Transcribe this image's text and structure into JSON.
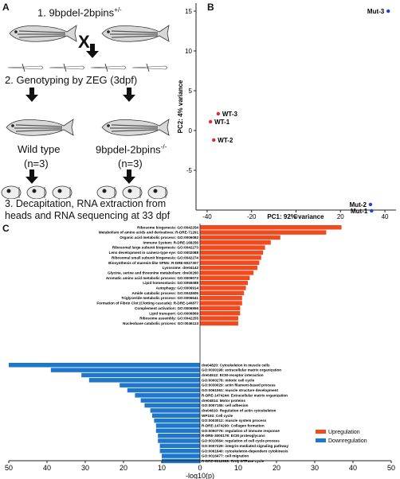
{
  "panelA": {
    "letter": "A",
    "step1": "1. 9bpdel-2bpins",
    "step1_sup": "+/-",
    "cross": "X",
    "step2": "2. Genotyping by ZEG (3dpf)",
    "wt_label": "Wild type",
    "wt_n": "(n=3)",
    "mut_label": "9bpdel-2bpins",
    "mut_sup": "-/-",
    "mut_n": "(n=3)",
    "step3_line1": "3. Decapitation, RNA extraction from",
    "step3_line2": "heads and RNA sequencing at 33 dpf"
  },
  "panelB": {
    "letter": "B",
    "xlabel": "PC1: 92% variance",
    "ylabel": "PC2: 4% variance",
    "colors": {
      "wt": "#e8242b",
      "mut": "#1f3fd6"
    },
    "chart_data": {
      "type": "scatter",
      "xlim": [
        -45,
        45
      ],
      "ylim": [
        -10,
        16
      ],
      "xticks": [
        "-40",
        "-20",
        "0",
        "20",
        "40"
      ],
      "yticks": [
        "15",
        "10",
        "5",
        "0",
        "-5"
      ],
      "points": [
        {
          "label": "Mut-3",
          "x": 41.5,
          "y": 15,
          "group": "mut"
        },
        {
          "label": "WT-3",
          "x": -35,
          "y": 2.1,
          "group": "wt"
        },
        {
          "label": "WT-1",
          "x": -38.5,
          "y": 1.1,
          "group": "wt"
        },
        {
          "label": "WT-2",
          "x": -37,
          "y": -1.2,
          "group": "wt"
        },
        {
          "label": "Mut-2",
          "x": 33.5,
          "y": -9.3,
          "group": "mut"
        },
        {
          "label": "Mut-1",
          "x": 34,
          "y": -10.1,
          "group": "mut"
        }
      ]
    }
  },
  "panelC": {
    "letter": "C",
    "xlabel": "-log10(p)",
    "xticks": [
      "50",
      "40",
      "30",
      "20",
      "10",
      "0",
      "10",
      "20",
      "30",
      "40",
      "50"
    ],
    "legend": {
      "up": "Upregulation",
      "down": "Downregulation"
    },
    "colors": {
      "up": "#f04a1e",
      "down": "#1f77c9"
    },
    "chart_data": {
      "type": "bar",
      "xlim": [
        -50,
        50
      ],
      "up": [
        {
          "label": "Ribosome biogenesis: GO:0042254",
          "value": 37
        },
        {
          "label": "Metabolism of amino acids and derivatives: R-DRE-71291",
          "value": 33
        },
        {
          "label": "Organic acid metabolic process: GO:0006082",
          "value": 21
        },
        {
          "label": "Immune System: R-DRE-168256",
          "value": 18.5
        },
        {
          "label": "Ribosomal large subunit biogenesis: GO:0042273",
          "value": 17
        },
        {
          "label": "Lens development in camera-type eye: GO:0002088",
          "value": 16.5
        },
        {
          "label": "Ribosomal small subunit biogenesis: GO:0042274",
          "value": 16
        },
        {
          "label": "Biosynthesis of maresin-like SPMs: R-DRE-9027307",
          "value": 15.5
        },
        {
          "label": "Lysosome: dre04142",
          "value": 15
        },
        {
          "label": "Glycine, serine and threonine metabolism: dre00260",
          "value": 14
        },
        {
          "label": "Aromatic amino acid metabolic process: GO:0009072",
          "value": 13
        },
        {
          "label": "Lipid homeostasis: GO:0055088",
          "value": 12.5
        },
        {
          "label": "Autophagy: GO:0006914",
          "value": 12
        },
        {
          "label": "Amide catabolic process: GO:0043605",
          "value": 11.5
        },
        {
          "label": "Triglyceride metabolic process: GO:0006641",
          "value": 11
        },
        {
          "label": "Formation of Fibrin Clot (Clotting cascade): R-DRE-140877",
          "value": 11
        },
        {
          "label": "Complement activation: GO:0006956",
          "value": 10.5
        },
        {
          "label": "Lipid transport: GO:0006869",
          "value": 10.5
        },
        {
          "label": "Ribosome assembly: GO:0042255",
          "value": 10
        },
        {
          "label": "Nucleobase catabolic process: GO:0046113",
          "value": 10
        }
      ],
      "down": [
        {
          "label": "dre04820: Cytoskeleton in muscle cells",
          "value": 50
        },
        {
          "label": "GO:0030198: extracellular matrix organization",
          "value": 39
        },
        {
          "label": "dre04512: ECM-receptor interaction",
          "value": 31
        },
        {
          "label": "GO:0000278: mitotic cell cycle",
          "value": 29
        },
        {
          "label": "GO:0030029: actin filament-based process",
          "value": 21
        },
        {
          "label": "GO:0061061: muscle structure development",
          "value": 19
        },
        {
          "label": "R-DRE-1474244: Extracellular matrix organization",
          "value": 17
        },
        {
          "label": "dre04814: Motor proteins",
          "value": 15.5
        },
        {
          "label": "GO:0007155: cell adhesion",
          "value": 14.5
        },
        {
          "label": "dre04810: Regulation of actin cytoskeleton",
          "value": 13
        },
        {
          "label": "WP193: Cell cycle",
          "value": 12.5
        },
        {
          "label": "GO:0003012: muscle system process",
          "value": 12
        },
        {
          "label": "R-DRE-1474290: Collagen formation",
          "value": 11.5
        },
        {
          "label": "GO:0050776: regulation of immune response",
          "value": 11.5
        },
        {
          "label": "R-DRE-3000178: ECM proteoglycans",
          "value": 11
        },
        {
          "label": "GO:0010564: regulation of cell cycle process",
          "value": 11
        },
        {
          "label": "GO:0007229: integrin-mediated signaling pathway",
          "value": 10.5
        },
        {
          "label": "GO:0061640: cytoskeleton-dependent cytokinesis",
          "value": 10.5
        },
        {
          "label": "GO:0016477: cell migration",
          "value": 10
        },
        {
          "label": "R-DRE-9012999: RHO GTPase cycle",
          "value": 10
        }
      ]
    }
  }
}
